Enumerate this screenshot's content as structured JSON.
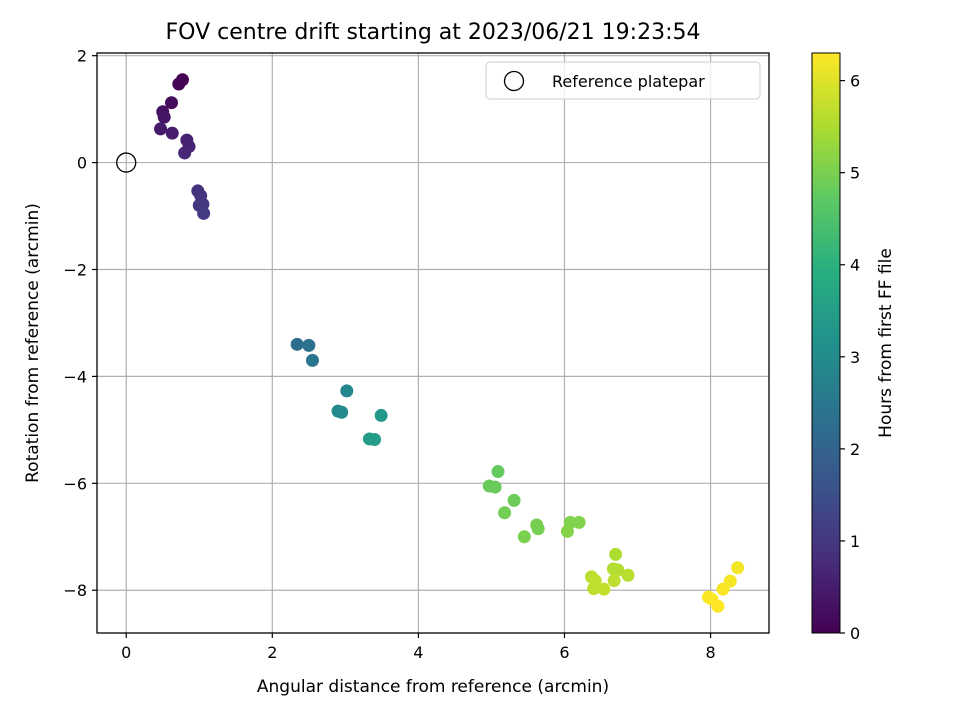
{
  "chart_data": {
    "type": "scatter",
    "title": "FOV centre drift starting at 2023/06/21 19:23:54",
    "xlabel": "Angular distance from reference (arcmin)",
    "ylabel": "Rotation from reference (arcmin)",
    "xlim": [
      -0.4,
      8.8
    ],
    "ylim": [
      -8.8,
      2.05
    ],
    "xticks": [
      "0",
      "2",
      "4",
      "6",
      "8"
    ],
    "xtick_values": [
      0,
      2,
      4,
      6,
      8
    ],
    "yticks": [
      "−8",
      "−6",
      "−4",
      "−2",
      "0",
      "2"
    ],
    "ytick_values": [
      -8,
      -6,
      -4,
      -2,
      0,
      2
    ],
    "grid": true,
    "legend": {
      "placement": "top-right",
      "entries": [
        "Reference platepar"
      ]
    },
    "reference_point": {
      "x": 0,
      "y": 0
    },
    "colormap": "viridis",
    "colorbar": {
      "label": "Hours from first FF file",
      "range": [
        0,
        6.3
      ],
      "ticks": [
        "0",
        "1",
        "2",
        "3",
        "4",
        "5",
        "6"
      ],
      "tick_values": [
        0,
        1,
        2,
        3,
        4,
        5,
        6
      ]
    },
    "points": [
      {
        "x": 0.77,
        "y": 1.55,
        "t": 0.0
      },
      {
        "x": 0.72,
        "y": 1.47,
        "t": 0.05
      },
      {
        "x": 0.62,
        "y": 1.12,
        "t": 0.2
      },
      {
        "x": 0.5,
        "y": 0.95,
        "t": 0.3
      },
      {
        "x": 0.52,
        "y": 0.85,
        "t": 0.35
      },
      {
        "x": 0.47,
        "y": 0.63,
        "t": 0.45
      },
      {
        "x": 0.63,
        "y": 0.55,
        "t": 0.5
      },
      {
        "x": 0.83,
        "y": 0.42,
        "t": 0.6
      },
      {
        "x": 0.86,
        "y": 0.3,
        "t": 0.65
      },
      {
        "x": 0.8,
        "y": 0.18,
        "t": 0.7
      },
      {
        "x": 0.98,
        "y": -0.53,
        "t": 0.9
      },
      {
        "x": 1.02,
        "y": -0.62,
        "t": 0.95
      },
      {
        "x": 1.0,
        "y": -0.8,
        "t": 1.0
      },
      {
        "x": 1.05,
        "y": -0.78,
        "t": 1.05
      },
      {
        "x": 1.06,
        "y": -0.95,
        "t": 1.1
      },
      {
        "x": 2.34,
        "y": -3.4,
        "t": 2.3
      },
      {
        "x": 2.5,
        "y": -3.42,
        "t": 2.4
      },
      {
        "x": 2.55,
        "y": -3.7,
        "t": 2.5
      },
      {
        "x": 3.02,
        "y": -4.27,
        "t": 2.9
      },
      {
        "x": 2.9,
        "y": -4.65,
        "t": 2.95
      },
      {
        "x": 2.95,
        "y": -4.67,
        "t": 3.0
      },
      {
        "x": 3.49,
        "y": -4.73,
        "t": 3.4
      },
      {
        "x": 3.33,
        "y": -5.17,
        "t": 3.45
      },
      {
        "x": 3.4,
        "y": -5.18,
        "t": 3.5
      },
      {
        "x": 5.09,
        "y": -5.78,
        "t": 4.8
      },
      {
        "x": 4.97,
        "y": -6.05,
        "t": 4.85
      },
      {
        "x": 5.05,
        "y": -6.07,
        "t": 4.85
      },
      {
        "x": 5.31,
        "y": -6.32,
        "t": 4.9
      },
      {
        "x": 5.18,
        "y": -6.55,
        "t": 4.95
      },
      {
        "x": 5.62,
        "y": -6.78,
        "t": 5.0
      },
      {
        "x": 5.64,
        "y": -6.85,
        "t": 5.0
      },
      {
        "x": 5.45,
        "y": -7.0,
        "t": 5.05
      },
      {
        "x": 6.08,
        "y": -6.73,
        "t": 5.1
      },
      {
        "x": 6.2,
        "y": -6.73,
        "t": 5.1
      },
      {
        "x": 6.04,
        "y": -6.9,
        "t": 5.15
      },
      {
        "x": 6.7,
        "y": -7.33,
        "t": 5.55
      },
      {
        "x": 6.67,
        "y": -7.6,
        "t": 5.6
      },
      {
        "x": 6.73,
        "y": -7.62,
        "t": 5.6
      },
      {
        "x": 6.87,
        "y": -7.72,
        "t": 5.65
      },
      {
        "x": 6.37,
        "y": -7.75,
        "t": 5.65
      },
      {
        "x": 6.42,
        "y": -7.82,
        "t": 5.7
      },
      {
        "x": 6.68,
        "y": -7.82,
        "t": 5.7
      },
      {
        "x": 6.4,
        "y": -7.97,
        "t": 5.7
      },
      {
        "x": 6.54,
        "y": -7.98,
        "t": 5.75
      },
      {
        "x": 8.37,
        "y": -7.58,
        "t": 6.2
      },
      {
        "x": 8.27,
        "y": -7.83,
        "t": 6.22
      },
      {
        "x": 8.17,
        "y": -7.98,
        "t": 6.25
      },
      {
        "x": 7.97,
        "y": -8.13,
        "t": 6.27
      },
      {
        "x": 8.02,
        "y": -8.17,
        "t": 6.28
      },
      {
        "x": 8.1,
        "y": -8.3,
        "t": 6.3
      }
    ]
  }
}
